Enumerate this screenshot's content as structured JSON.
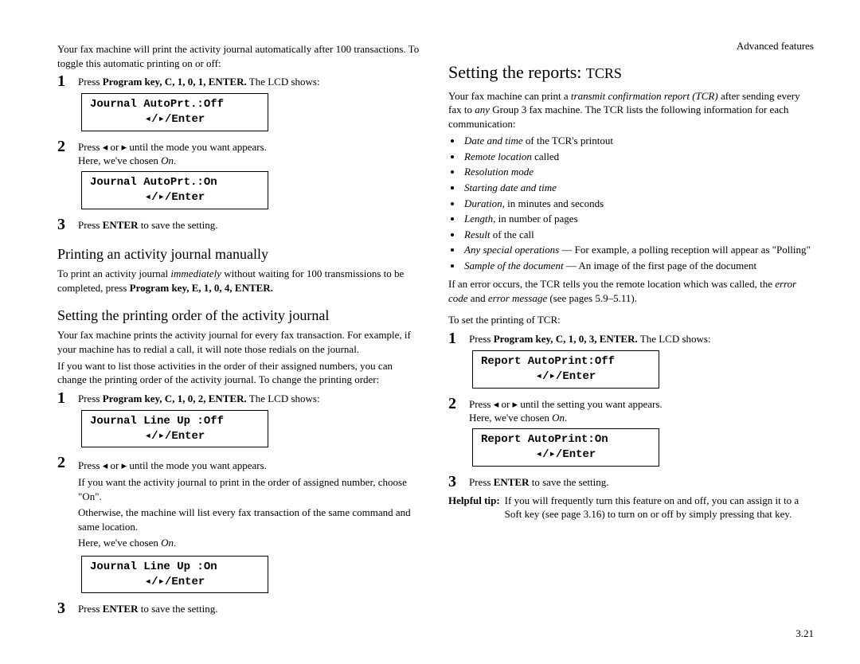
{
  "header": {
    "section": "Advanced features"
  },
  "footer": {
    "page": "3.21"
  },
  "left": {
    "intro": "Your fax machine will print the activity journal automatically after 100 transactions. To toggle this automatic printing on or off:",
    "step1": {
      "pre": "Press ",
      "keys": "Program key, C, 1, 0, 1, ENTER.",
      "post": " The LCD shows:"
    },
    "lcd1": "Journal AutoPrt.:Off",
    "step2a": "Press ◂ or ▸ until the mode you want appears.",
    "step2b": "Here, we've chosen On.",
    "lcd2": "Journal AutoPrt.:On",
    "step3": "Press ENTER to save the setting.",
    "h3a": "Printing an activity journal manually",
    "manual_a": "To print an activity journal ",
    "manual_i": "immediately",
    "manual_b": " without waiting for 100 transmissions to be completed, press ",
    "manual_keys": "Program key, E, 1, 0, 4, ENTER.",
    "h3b": "Setting the printing order of the activity journal",
    "order_p1": "Your fax machine prints the activity journal for every fax transaction. For example, if your machine has to redial a call, it will note those redials on the journal.",
    "order_p2": "If you want to list those activities in the order of their assigned numbers, you can change the printing order of the activity journal. To change the printing order:",
    "order_step1": {
      "pre": "Press ",
      "keys": "Program key, C, 1, 0, 2, ENTER.",
      "post": " The LCD shows:"
    },
    "lcd3": "Journal Line Up :Off",
    "order_step2a": "Press ◂ or ▸ until the mode you want appears.",
    "order_step2b": "If you want the activity journal to print in the order of assigned number, choose \"On\".",
    "order_step2c": "Otherwise, the machine will list every fax transaction of the same command and same location.",
    "order_step2d": "Here, we've chosen On.",
    "lcd4": "Journal Line Up :On",
    "order_step3": "Press ENTER to save the setting."
  },
  "right": {
    "h2a": "Setting the reports: ",
    "h2b": "TCRS",
    "intro1a": "Your fax machine can print a ",
    "intro1b": "transmit confirmation report (TCR)",
    "intro1c": " after sending every fax to ",
    "intro1d": "any",
    "intro1e": " Group 3 fax machine. The TCR lists the following information for each communication:",
    "bullets": [
      {
        "i": "Date and time",
        "t": " of the TCR's printout"
      },
      {
        "i": "Remote location",
        "t": " called"
      },
      {
        "i": "Resolution mode",
        "t": ""
      },
      {
        "i": "Starting date and time",
        "t": ""
      },
      {
        "i": "Duration,",
        "t": " in minutes and seconds"
      },
      {
        "i": "Length,",
        "t": " in number of pages"
      },
      {
        "i": "Result",
        "t": " of the call"
      },
      {
        "i": "Any special operations",
        "t": " — For example, a polling reception will appear as \"Polling\""
      },
      {
        "i": "Sample of the document",
        "t": " — An image of the first page of the document"
      }
    ],
    "err_a": "If an error occurs, the TCR tells you the remote location which was called, the ",
    "err_b": "error code",
    "err_c": " and ",
    "err_d": "error message",
    "err_e": " (see pages 5.9–5.11).",
    "toset": "To set the printing of TCR:",
    "step1": {
      "pre": "Press ",
      "keys": "Program key, C, 1, 0, 3, ENTER.",
      "post": " The LCD shows:"
    },
    "lcd1": "Report AutoPrint:Off",
    "step2a": "Press ◂ or ▸ until the setting you want appears.",
    "step2b": "Here, we've chosen On.",
    "lcd2": "Report AutoPrint:On",
    "step3": "Press ENTER to save the setting.",
    "tip_lbl": "Helpful tip:",
    "tip_txt": "If you will frequently turn this feature on and off, you can assign it to a Soft key (see page 3.16) to turn on or off by simply pressing that key."
  },
  "lcd_nav": "◂/▸/Enter"
}
